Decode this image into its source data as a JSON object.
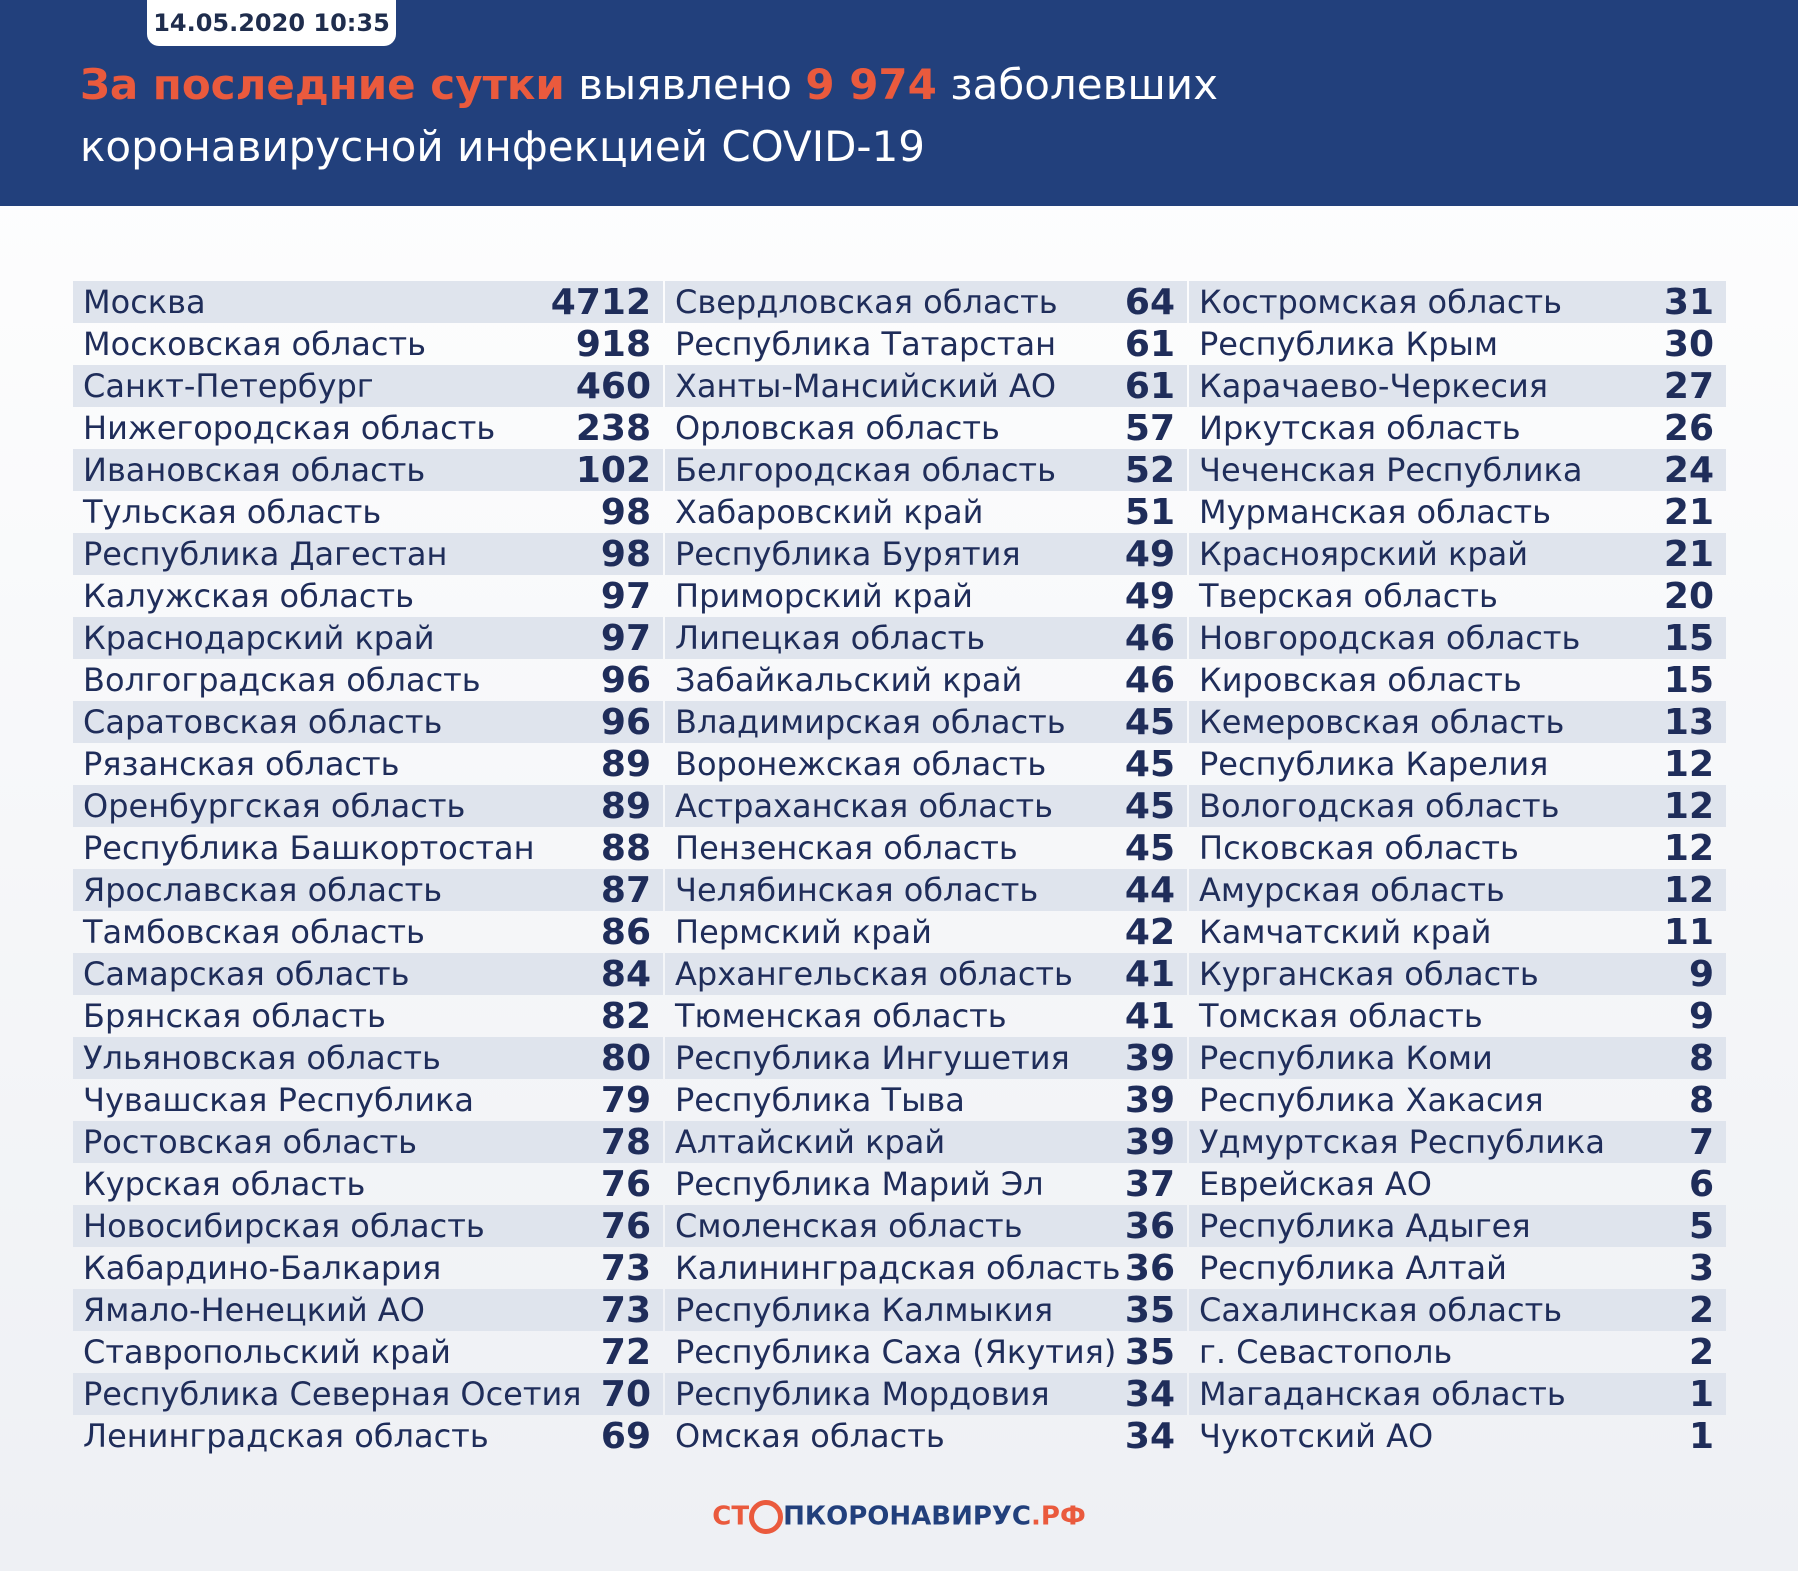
{
  "header": {
    "date": "14.05.2020 10:35",
    "title": {
      "highlight_1": "За последние сутки",
      "text_1": "выявлено",
      "highlight_2": "9 974",
      "text_2": "заболевших",
      "line_2": "коронавирусной инфекцией COVID-19"
    }
  },
  "table": {
    "columns": [
      {
        "rows": [
          [
            "Москва",
            4712
          ],
          [
            "Московская область",
            918
          ],
          [
            "Санкт-Петербург",
            460
          ],
          [
            "Нижегородская область",
            238
          ],
          [
            "Ивановская область",
            102
          ],
          [
            "Тульская область",
            98
          ],
          [
            "Республика Дагестан",
            98
          ],
          [
            "Калужская область",
            97
          ],
          [
            "Краснодарский край",
            97
          ],
          [
            "Волгоградская область",
            96
          ],
          [
            "Саратовская область",
            96
          ],
          [
            "Рязанская область",
            89
          ],
          [
            "Оренбургская область",
            89
          ],
          [
            "Республика Башкортостан",
            88
          ],
          [
            "Ярославская область",
            87
          ],
          [
            "Тамбовская область",
            86
          ],
          [
            "Самарская область",
            84
          ],
          [
            "Брянская область",
            82
          ],
          [
            "Ульяновская область",
            80
          ],
          [
            "Чувашская Республика",
            79
          ],
          [
            "Ростовская область",
            78
          ],
          [
            "Курская область",
            76
          ],
          [
            "Новосибирская область",
            76
          ],
          [
            "Кабардино-Балкария",
            73
          ],
          [
            "Ямало-Ненецкий АО",
            73
          ],
          [
            "Ставропольский край",
            72
          ],
          [
            "Республика Северная Осетия",
            70
          ],
          [
            "Ленинградская область",
            69
          ]
        ]
      },
      {
        "rows": [
          [
            "Свердловская область",
            64
          ],
          [
            "Республика Татарстан",
            61
          ],
          [
            "Ханты-Мансийский АО",
            61
          ],
          [
            "Орловская область",
            57
          ],
          [
            "Белгородская область",
            52
          ],
          [
            "Хабаровский край",
            51
          ],
          [
            "Республика Бурятия",
            49
          ],
          [
            "Приморский край",
            49
          ],
          [
            "Липецкая область",
            46
          ],
          [
            "Забайкальский край",
            46
          ],
          [
            "Владимирская область",
            45
          ],
          [
            "Воронежская область",
            45
          ],
          [
            "Астраханская область",
            45
          ],
          [
            "Пензенская область",
            45
          ],
          [
            "Челябинская область",
            44
          ],
          [
            "Пермский край",
            42
          ],
          [
            "Архангельская область",
            41
          ],
          [
            "Тюменская область",
            41
          ],
          [
            "Республика Ингушетия",
            39
          ],
          [
            "Республика Тыва",
            39
          ],
          [
            "Алтайский край",
            39
          ],
          [
            "Республика Марий Эл",
            37
          ],
          [
            "Смоленская область",
            36
          ],
          [
            "Калининградская область",
            36
          ],
          [
            "Республика Калмыкия",
            35
          ],
          [
            "Республика Саха (Якутия)",
            35
          ],
          [
            "Республика Мордовия",
            34
          ],
          [
            "Омская область",
            34
          ]
        ]
      },
      {
        "rows": [
          [
            "Костромская область",
            31
          ],
          [
            "Республика Крым",
            30
          ],
          [
            "Карачаево-Черкесия",
            27
          ],
          [
            "Иркутская область",
            26
          ],
          [
            "Чеченская Республика",
            24
          ],
          [
            "Мурманская область",
            21
          ],
          [
            "Красноярский край",
            21
          ],
          [
            "Тверская область",
            20
          ],
          [
            "Новгородская область",
            15
          ],
          [
            "Кировская область",
            15
          ],
          [
            "Кемеровская область",
            13
          ],
          [
            "Республика Карелия",
            12
          ],
          [
            "Вологодская область",
            12
          ],
          [
            "Псковская область",
            12
          ],
          [
            "Амурская область",
            12
          ],
          [
            "Камчатский край",
            11
          ],
          [
            "Курганская область",
            9
          ],
          [
            "Томская область",
            9
          ],
          [
            "Республика Коми",
            8
          ],
          [
            "Республика Хакасия",
            8
          ],
          [
            "Удмуртская Республика",
            7
          ],
          [
            "Еврейская АО",
            6
          ],
          [
            "Республика Адыгея",
            5
          ],
          [
            "Республика Алтай",
            3
          ],
          [
            "Сахалинская область",
            2
          ],
          [
            "г. Севастополь",
            2
          ],
          [
            "Магаданская область",
            1
          ],
          [
            "Чукотский АО",
            1
          ]
        ]
      }
    ]
  },
  "footer": {
    "logo_1": "СТ",
    "logo_2": "ПКОРОНАВИРУС",
    "logo_3": ".РФ"
  }
}
